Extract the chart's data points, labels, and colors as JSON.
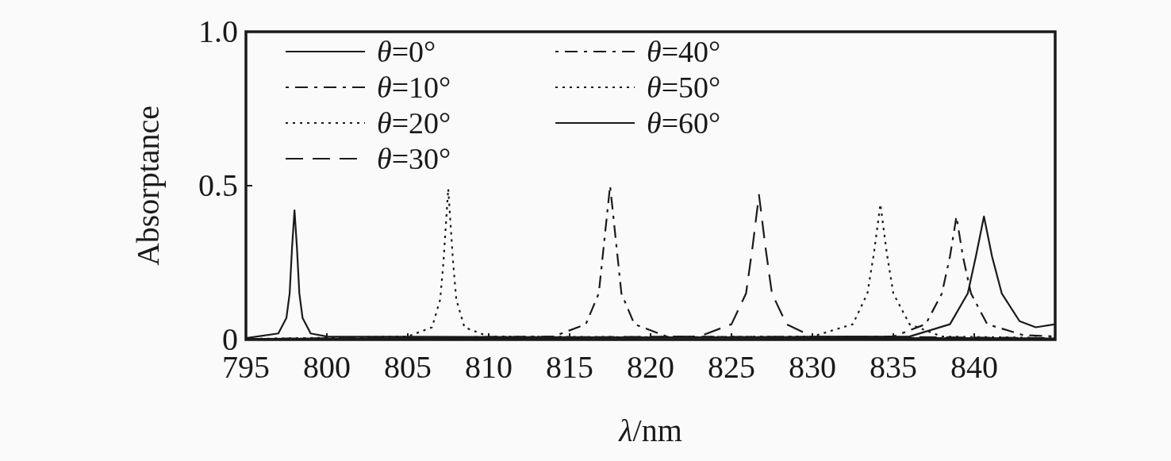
{
  "chart_data": {
    "type": "line",
    "xlabel": "λ/nm",
    "ylabel": "Absorptance",
    "xlim": [
      795,
      845
    ],
    "xticks": [
      795,
      800,
      805,
      810,
      815,
      820,
      825,
      830,
      835,
      840
    ],
    "ylim": [
      0,
      1
    ],
    "yticks": [
      0,
      {
        "value": 0.5,
        "label": "0.5"
      },
      {
        "value": 1,
        "label": "1.0"
      }
    ],
    "grid": false,
    "legend": "top left",
    "marker": "none",
    "series": [
      {
        "name": "θ=0°",
        "color": "#1a1a1a",
        "line_style": "solid",
        "x": [
          795,
          836,
          838.5,
          839.6,
          840.1,
          840.6,
          841.1,
          841.7,
          842.8,
          843.8,
          845
        ],
        "values": [
          0.002,
          0.01,
          0.05,
          0.15,
          0.27,
          0.4,
          0.27,
          0.15,
          0.06,
          0.04,
          0.05
        ]
      },
      {
        "name": "θ=10°",
        "color": "#1a1a1a",
        "line_style": "dashdot",
        "x": [
          795,
          835,
          837,
          838,
          838.5,
          838.9,
          839.3,
          839.8,
          840.8,
          843,
          845
        ],
        "values": [
          0.002,
          0.01,
          0.05,
          0.15,
          0.27,
          0.4,
          0.27,
          0.15,
          0.05,
          0.015,
          0.01
        ]
      },
      {
        "name": "θ=20°",
        "color": "#1a1a1a",
        "line_style": "dotted",
        "x": [
          795,
          830,
          832.5,
          833.4,
          833.8,
          834.2,
          834.6,
          835,
          836,
          838,
          845
        ],
        "values": [
          0.002,
          0.01,
          0.05,
          0.15,
          0.28,
          0.44,
          0.28,
          0.15,
          0.05,
          0.01,
          0.005
        ]
      },
      {
        "name": "θ=30°",
        "color": "#1a1a1a",
        "line_style": "dashed",
        "x": [
          795,
          823,
          825,
          825.9,
          826.3,
          826.7,
          827.1,
          827.5,
          828.4,
          830,
          845
        ],
        "values": [
          0.002,
          0.01,
          0.05,
          0.15,
          0.3,
          0.47,
          0.3,
          0.15,
          0.05,
          0.01,
          0.005
        ]
      },
      {
        "name": "θ=40°",
        "color": "#1a1a1a",
        "line_style": "dashdot",
        "x": [
          795,
          814,
          816,
          816.8,
          817.1,
          817.5,
          817.9,
          818.2,
          819,
          821,
          845
        ],
        "values": [
          0.002,
          0.01,
          0.05,
          0.15,
          0.3,
          0.5,
          0.3,
          0.15,
          0.05,
          0.01,
          0.003
        ]
      },
      {
        "name": "θ=50°",
        "color": "#1a1a1a",
        "line_style": "dotted",
        "x": [
          795,
          805,
          806.5,
          807,
          807.2,
          807.5,
          807.8,
          808,
          808.5,
          810,
          845
        ],
        "values": [
          0.002,
          0.01,
          0.04,
          0.13,
          0.25,
          0.49,
          0.25,
          0.13,
          0.04,
          0.01,
          0.003
        ]
      },
      {
        "name": "θ=60°",
        "color": "#1a1a1a",
        "line_style": "solid",
        "x": [
          795,
          797,
          797.5,
          797.7,
          797.85,
          798,
          798.15,
          798.3,
          798.5,
          799,
          800,
          845
        ],
        "values": [
          0.005,
          0.02,
          0.07,
          0.15,
          0.3,
          0.42,
          0.3,
          0.15,
          0.07,
          0.02,
          0.01,
          0.003
        ]
      }
    ]
  }
}
